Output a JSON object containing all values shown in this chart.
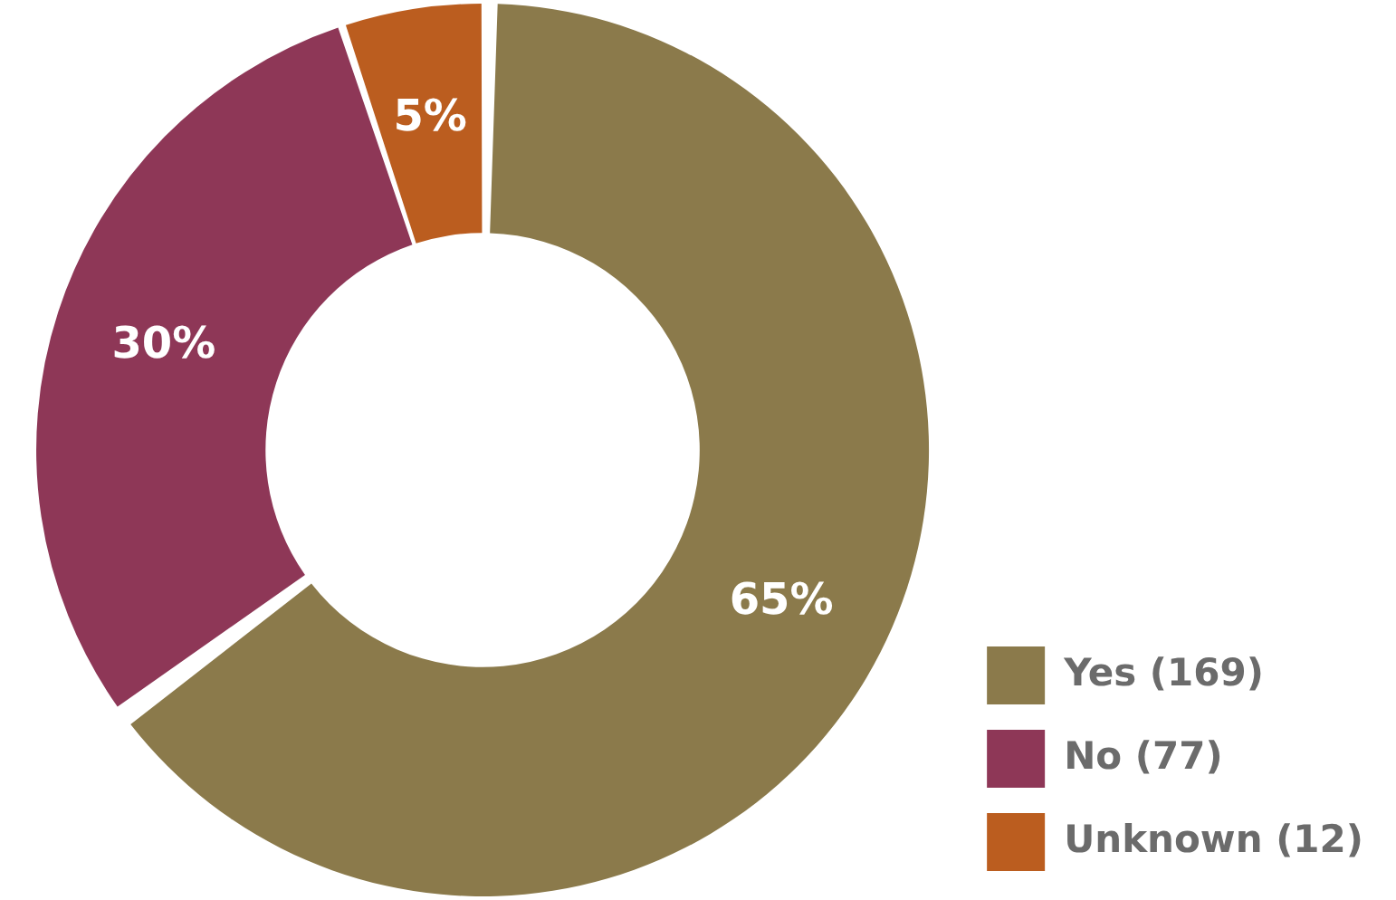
{
  "chart_data": {
    "type": "donut",
    "categories": [
      "Yes (169)",
      "No (77)",
      "Unknown (12)"
    ],
    "values": [
      65,
      30,
      5
    ],
    "colors": [
      "#8b7a4b",
      "#8e3757",
      "#bb5d1f"
    ],
    "value_labels": [
      "65%",
      "30%",
      "5%"
    ],
    "legend": "bottom right"
  }
}
